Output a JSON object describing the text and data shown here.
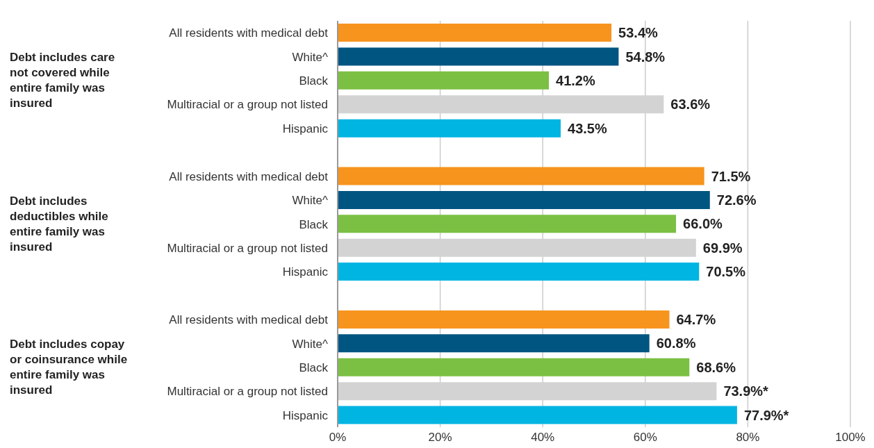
{
  "chart_data": {
    "type": "bar",
    "orientation": "horizontal",
    "categories": [
      "All residents with medical debt",
      "White^",
      "Black",
      "Multiracial or a group not listed",
      "Hispanic",
      null,
      "All residents with medical debt",
      "White^",
      "Black",
      "Multiracial or a group not listed",
      "Hispanic",
      null,
      "All residents with medical debt",
      "White^",
      "Black",
      "Multiracial or a group not listed",
      "Hispanic"
    ],
    "values": [
      53.4,
      54.8,
      41.2,
      63.6,
      43.5,
      null,
      71.5,
      72.6,
      66.0,
      69.9,
      70.5,
      null,
      64.7,
      60.8,
      68.6,
      73.9,
      77.9
    ],
    "colors": [
      "#f7941d",
      "#005581",
      "#7bc043",
      "#d3d3d3",
      "#00b5e2",
      "#ffffff",
      "#f7941d",
      "#005581",
      "#7bc043",
      "#d3d3d3",
      "#00b5e2",
      "#ffffff",
      "#f7941d",
      "#005581",
      "#7bc043",
      "#d3d3d3",
      "#00b5e2"
    ],
    "value_labels": [
      "53.4%",
      "54.8%",
      "41.2%",
      "63.6%",
      "43.5%",
      null,
      "71.5%",
      "72.6%",
      "66.0%",
      "69.9%",
      "70.5%",
      null,
      "64.7%",
      "60.8%",
      "68.6%",
      "73.9%*",
      "77.9%*"
    ],
    "xlim": [
      0,
      100
    ],
    "xticks": [
      {
        "value": 0,
        "label": "0%"
      },
      {
        "value": 20,
        "label": "20%"
      },
      {
        "value": 40,
        "label": "40%"
      },
      {
        "value": 60,
        "label": "60%"
      },
      {
        "value": 80,
        "label": "80%"
      },
      {
        "value": 100,
        "label": "100%"
      }
    ],
    "grid": "x",
    "annotations": [
      "Debt includes care not covered while entire family was insured",
      "Debt includes deductibles while entire family was insured",
      "Debt includes copay or coinsurance while entire family was insured"
    ]
  }
}
